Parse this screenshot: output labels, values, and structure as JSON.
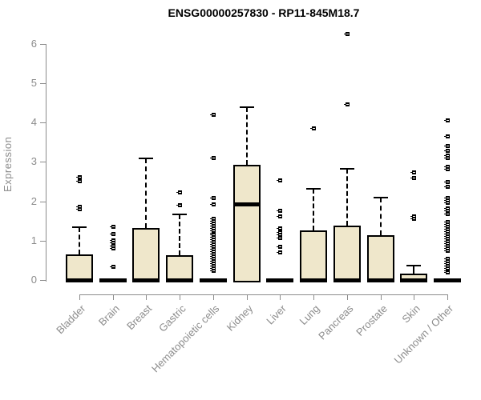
{
  "title": "ENSG00000257830 - RP11-845M18.7",
  "colors": {
    "box_fill": "#efe7cb",
    "box_stroke": "#000000",
    "axis_gray": "#8c8c8c",
    "title_color": "#000000",
    "background": "#ffffff"
  },
  "chart_data": {
    "type": "boxplot",
    "title": "ENSG00000257830 - RP11-845M18.7",
    "xlabel": "",
    "ylabel": "Expression",
    "ylim": [
      0,
      6
    ],
    "yticks": [
      0,
      1,
      2,
      3,
      4,
      5,
      6
    ],
    "grid": false,
    "legend": "none",
    "categories": [
      "Bladder",
      "Brain",
      "Breast",
      "Gastric",
      "Hematopoietic cells",
      "Kidney",
      "Liver",
      "Lung",
      "Pancreas",
      "Prostate",
      "Skin",
      "Unknown / Other"
    ],
    "boxes": [
      {
        "label": "Bladder",
        "whisker_low": 0,
        "q1": 0,
        "median": 0,
        "q3": 0.65,
        "whisker_high": 1.35,
        "outliers": [
          2.62,
          2.53,
          1.88,
          1.8
        ]
      },
      {
        "label": "Brain",
        "whisker_low": 0,
        "q1": 0,
        "median": 0,
        "q3": 0,
        "whisker_high": 0,
        "outliers": [
          1.36,
          1.18,
          1.02,
          0.95,
          0.88,
          0.81,
          0.35
        ]
      },
      {
        "label": "Breast",
        "whisker_low": 0,
        "q1": 0,
        "median": 0,
        "q3": 1.32,
        "whisker_high": 3.1,
        "outliers": []
      },
      {
        "label": "Gastric",
        "whisker_low": 0,
        "q1": 0,
        "median": 0,
        "q3": 0.63,
        "whisker_high": 1.67,
        "outliers": [
          2.24,
          1.91
        ]
      },
      {
        "label": "Hematopoietic cells",
        "whisker_low": 0,
        "q1": 0,
        "median": 0,
        "q3": 0,
        "whisker_high": 0,
        "outliers": [
          4.22,
          3.11,
          2.09,
          1.93,
          1.57,
          1.51,
          1.45,
          1.39,
          1.33,
          1.27,
          1.21,
          1.15,
          1.09,
          1.03,
          0.97,
          0.91,
          0.85,
          0.79,
          0.73,
          0.67,
          0.61,
          0.55,
          0.49,
          0.43,
          0.37,
          0.3,
          0.24
        ]
      },
      {
        "label": "Kidney",
        "whisker_low": 0,
        "q1": 0,
        "median": 1.93,
        "q3": 2.92,
        "whisker_high": 4.4,
        "outliers": []
      },
      {
        "label": "Liver",
        "whisker_low": 0,
        "q1": 0,
        "median": 0,
        "q3": 0,
        "whisker_high": 0,
        "outliers": [
          2.54,
          1.77,
          1.63,
          1.32,
          1.22,
          1.15,
          1.08,
          0.85,
          0.71
        ]
      },
      {
        "label": "Lung",
        "whisker_low": 0,
        "q1": 0,
        "median": 0,
        "q3": 1.26,
        "whisker_high": 2.32,
        "outliers": [
          3.86
        ]
      },
      {
        "label": "Pancreas",
        "whisker_low": 0,
        "q1": 0,
        "median": 0,
        "q3": 1.38,
        "whisker_high": 2.82,
        "outliers": [
          6.26,
          4.47
        ]
      },
      {
        "label": "Prostate",
        "whisker_low": 0,
        "q1": 0,
        "median": 0,
        "q3": 1.14,
        "whisker_high": 2.1,
        "outliers": []
      },
      {
        "label": "Skin",
        "whisker_low": 0,
        "q1": 0,
        "median": 0,
        "q3": 0.17,
        "whisker_high": 0.36,
        "outliers": [
          2.74,
          2.6,
          1.63,
          1.57
        ]
      },
      {
        "label": "Unknown / Other",
        "whisker_low": 0,
        "q1": 0,
        "median": 0,
        "q3": 0,
        "whisker_high": 0,
        "outliers": [
          4.07,
          3.66,
          3.41,
          3.29,
          3.18,
          3.11,
          2.88,
          2.82,
          2.5,
          2.38,
          2.09,
          2.03,
          1.97,
          1.83,
          1.76,
          1.69,
          1.48,
          1.42,
          1.36,
          1.3,
          1.24,
          1.18,
          1.12,
          1.06,
          1.0,
          0.94,
          0.88,
          0.82,
          0.76,
          0.55,
          0.49,
          0.43,
          0.37,
          0.31,
          0.25,
          0.2
        ]
      }
    ]
  }
}
